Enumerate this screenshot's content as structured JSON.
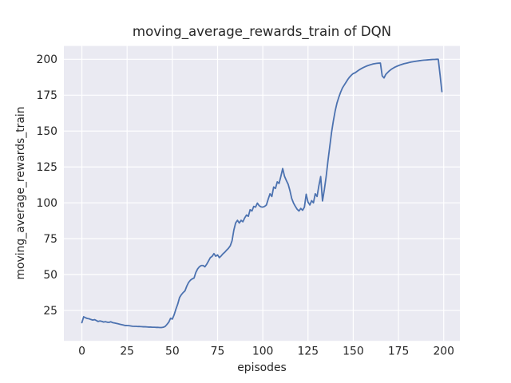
{
  "chart_data": {
    "type": "line",
    "title": "moving_average_rewards_train of DQN",
    "xlabel": "episodes",
    "ylabel": "moving_average_rewards_train",
    "x_ticks": [
      0,
      25,
      50,
      75,
      100,
      125,
      150,
      175,
      200
    ],
    "y_ticks": [
      25,
      50,
      75,
      100,
      125,
      150,
      175,
      200
    ],
    "xlim": [
      -9.95,
      208.95
    ],
    "ylim": [
      3.8,
      209.3
    ],
    "grid": true,
    "legend": false,
    "style": {
      "plot_bg": "#EAEAF2",
      "grid_color": "#FFFFFF",
      "line_color": "#4C72B0",
      "text_color": "#262626",
      "line_width": 1.8
    },
    "series": [
      {
        "name": "moving_average_rewards_train",
        "points": [
          [
            0,
            16.5
          ],
          [
            1,
            20.6
          ],
          [
            2,
            19.9
          ],
          [
            3,
            19.4
          ],
          [
            4,
            19.2
          ],
          [
            5,
            18.7
          ],
          [
            6,
            18.3
          ],
          [
            7,
            18.6
          ],
          [
            8,
            18.0
          ],
          [
            9,
            17.3
          ],
          [
            10,
            17.7
          ],
          [
            11,
            17.4
          ],
          [
            12,
            16.9
          ],
          [
            13,
            17.2
          ],
          [
            14,
            16.8
          ],
          [
            15,
            16.7
          ],
          [
            16,
            17.1
          ],
          [
            17,
            16.5
          ],
          [
            18,
            16.3
          ],
          [
            19,
            16.0
          ],
          [
            20,
            15.7
          ],
          [
            21,
            15.4
          ],
          [
            22,
            15.1
          ],
          [
            23,
            14.8
          ],
          [
            24,
            14.5
          ],
          [
            25,
            14.5
          ],
          [
            26,
            14.4
          ],
          [
            27,
            14.2
          ],
          [
            28,
            14.0
          ],
          [
            29,
            13.9
          ],
          [
            30,
            13.9
          ],
          [
            31,
            13.8
          ],
          [
            32,
            13.8
          ],
          [
            33,
            13.7
          ],
          [
            34,
            13.6
          ],
          [
            35,
            13.6
          ],
          [
            36,
            13.5
          ],
          [
            37,
            13.4
          ],
          [
            38,
            13.4
          ],
          [
            39,
            13.3
          ],
          [
            40,
            13.3
          ],
          [
            41,
            13.2
          ],
          [
            42,
            13.2
          ],
          [
            43,
            13.1
          ],
          [
            44,
            13.1
          ],
          [
            45,
            13.3
          ],
          [
            46,
            13.8
          ],
          [
            47,
            15.2
          ],
          [
            48,
            16.8
          ],
          [
            49,
            19.5
          ],
          [
            50,
            19.0
          ],
          [
            51,
            22.0
          ],
          [
            52,
            26.0
          ],
          [
            53,
            29.5
          ],
          [
            54,
            34.0
          ],
          [
            55,
            36.0
          ],
          [
            56,
            37.5
          ],
          [
            57,
            38.7
          ],
          [
            58,
            42.0
          ],
          [
            59,
            44.5
          ],
          [
            60,
            46.1
          ],
          [
            61,
            47.0
          ],
          [
            62,
            47.6
          ],
          [
            63,
            51.5
          ],
          [
            64,
            54.0
          ],
          [
            65,
            55.5
          ],
          [
            66,
            56.3
          ],
          [
            67,
            56.3
          ],
          [
            68,
            55.4
          ],
          [
            69,
            57.2
          ],
          [
            70,
            59.5
          ],
          [
            71,
            61.8
          ],
          [
            72,
            62.7
          ],
          [
            73,
            64.6
          ],
          [
            74,
            62.8
          ],
          [
            75,
            63.7
          ],
          [
            76,
            61.8
          ],
          [
            77,
            63.0
          ],
          [
            78,
            64.5
          ],
          [
            79,
            65.6
          ],
          [
            80,
            67.0
          ],
          [
            81,
            68.3
          ],
          [
            82,
            70.0
          ],
          [
            83,
            73.5
          ],
          [
            84,
            81.0
          ],
          [
            85,
            86.0
          ],
          [
            86,
            87.8
          ],
          [
            87,
            85.9
          ],
          [
            88,
            87.8
          ],
          [
            89,
            86.8
          ],
          [
            90,
            89.5
          ],
          [
            91,
            91.5
          ],
          [
            92,
            90.6
          ],
          [
            93,
            95.2
          ],
          [
            94,
            94.3
          ],
          [
            95,
            97.5
          ],
          [
            96,
            97.0
          ],
          [
            97,
            99.8
          ],
          [
            98,
            98.0
          ],
          [
            99,
            97.2
          ],
          [
            100,
            97.0
          ],
          [
            101,
            97.5
          ],
          [
            102,
            98.5
          ],
          [
            103,
            102.6
          ],
          [
            104,
            106.3
          ],
          [
            105,
            104.4
          ],
          [
            106,
            111.0
          ],
          [
            107,
            110.0
          ],
          [
            108,
            114.6
          ],
          [
            109,
            113.5
          ],
          [
            110,
            118.5
          ],
          [
            111,
            123.9
          ],
          [
            112,
            118.5
          ],
          [
            113,
            115.6
          ],
          [
            114,
            113.0
          ],
          [
            115,
            108.5
          ],
          [
            116,
            103.0
          ],
          [
            117,
            99.8
          ],
          [
            118,
            97.5
          ],
          [
            119,
            95.5
          ],
          [
            120,
            94.3
          ],
          [
            121,
            96.1
          ],
          [
            122,
            94.8
          ],
          [
            123,
            97.0
          ],
          [
            124,
            106.0
          ],
          [
            125,
            100.5
          ],
          [
            126,
            98.5
          ],
          [
            127,
            101.5
          ],
          [
            128,
            100.0
          ],
          [
            129,
            106.3
          ],
          [
            130,
            104.4
          ],
          [
            131,
            111.9
          ],
          [
            132,
            118.3
          ],
          [
            133,
            101.3
          ],
          [
            134,
            109.0
          ],
          [
            135,
            118.0
          ],
          [
            136,
            129.0
          ],
          [
            137,
            139.0
          ],
          [
            138,
            149.0
          ],
          [
            139,
            157.0
          ],
          [
            140,
            164.0
          ],
          [
            141,
            169.5
          ],
          [
            142,
            173.5
          ],
          [
            143,
            177.0
          ],
          [
            144,
            180.0
          ],
          [
            145,
            182.0
          ],
          [
            146,
            184.0
          ],
          [
            147,
            186.0
          ],
          [
            148,
            187.7
          ],
          [
            149,
            189.0
          ],
          [
            150,
            190.1
          ],
          [
            151,
            190.6
          ],
          [
            152,
            191.5
          ],
          [
            153,
            192.4
          ],
          [
            154,
            193.2
          ],
          [
            155,
            193.9
          ],
          [
            156,
            194.5
          ],
          [
            157,
            195.1
          ],
          [
            158,
            195.6
          ],
          [
            159,
            196.0
          ],
          [
            160,
            196.4
          ],
          [
            161,
            196.8
          ],
          [
            162,
            197.0
          ],
          [
            163,
            197.2
          ],
          [
            164,
            197.3
          ],
          [
            165,
            197.4
          ],
          [
            166,
            188.5
          ],
          [
            167,
            187.0
          ],
          [
            168,
            189.5
          ],
          [
            169,
            190.8
          ],
          [
            170,
            192.0
          ],
          [
            171,
            193.0
          ],
          [
            172,
            193.8
          ],
          [
            173,
            194.5
          ],
          [
            174,
            195.1
          ],
          [
            175,
            195.6
          ],
          [
            176,
            196.1
          ],
          [
            177,
            196.5
          ],
          [
            178,
            196.9
          ],
          [
            179,
            197.2
          ],
          [
            180,
            197.5
          ],
          [
            181,
            197.8
          ],
          [
            182,
            198.1
          ],
          [
            183,
            198.3
          ],
          [
            184,
            198.5
          ],
          [
            185,
            198.7
          ],
          [
            186,
            198.9
          ],
          [
            187,
            199.1
          ],
          [
            188,
            199.3
          ],
          [
            189,
            199.4
          ],
          [
            190,
            199.5
          ],
          [
            191,
            199.6
          ],
          [
            192,
            199.7
          ],
          [
            193,
            199.8
          ],
          [
            194,
            199.9
          ],
          [
            195,
            199.9
          ],
          [
            196,
            200.0
          ],
          [
            197,
            200.0
          ],
          [
            198,
            189.0
          ],
          [
            199,
            177.5
          ]
        ]
      }
    ]
  }
}
